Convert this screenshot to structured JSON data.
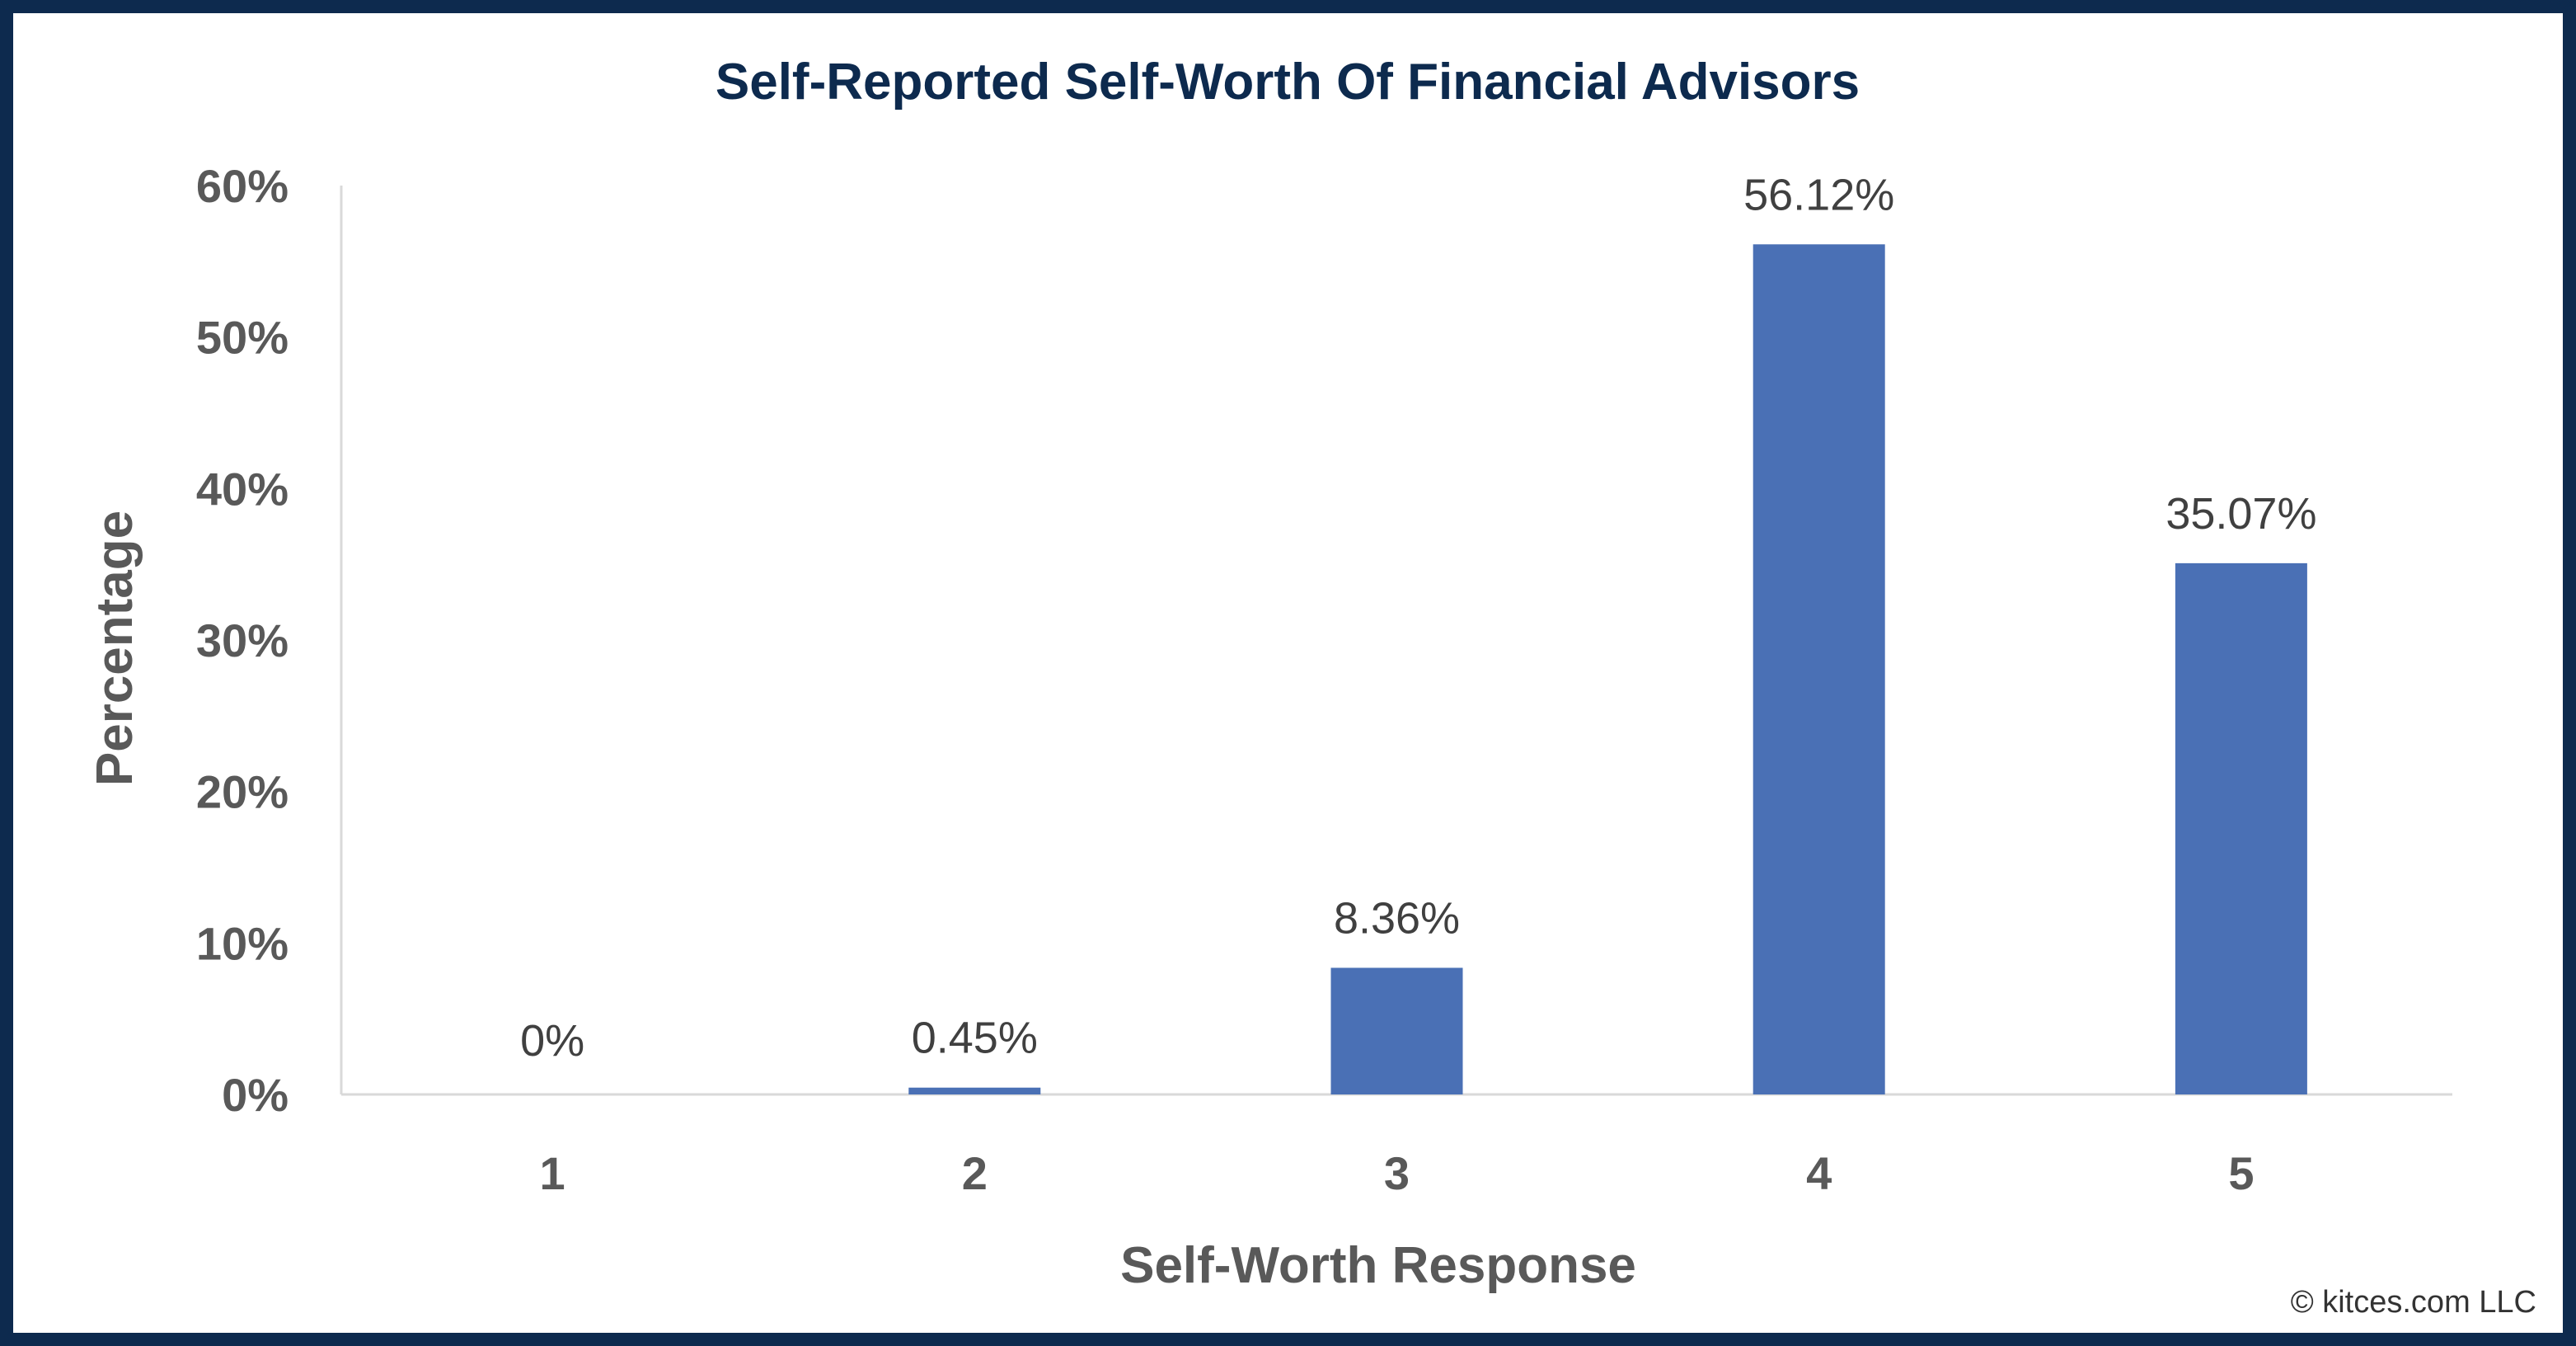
{
  "chart_data": {
    "type": "bar",
    "title": "Self-Reported Self-Worth Of Financial Advisors",
    "xlabel": "Self-Worth Response",
    "ylabel": "Percentage",
    "categories": [
      "1",
      "2",
      "3",
      "4",
      "5"
    ],
    "values": [
      0,
      0.45,
      8.36,
      56.12,
      35.07
    ],
    "data_labels": [
      "0%",
      "0.45%",
      "8.36%",
      "56.12%",
      "35.07%"
    ],
    "ylim": [
      0,
      60
    ],
    "yticks": [
      0,
      10,
      20,
      30,
      40,
      50,
      60
    ],
    "ytick_labels": [
      "0%",
      "10%",
      "20%",
      "30%",
      "40%",
      "50%",
      "60%"
    ],
    "grid": false,
    "legend": "none",
    "bar_color": "#4a70b5",
    "title_color": "#0d2a4e"
  },
  "credit": "© kitces.com LLC"
}
